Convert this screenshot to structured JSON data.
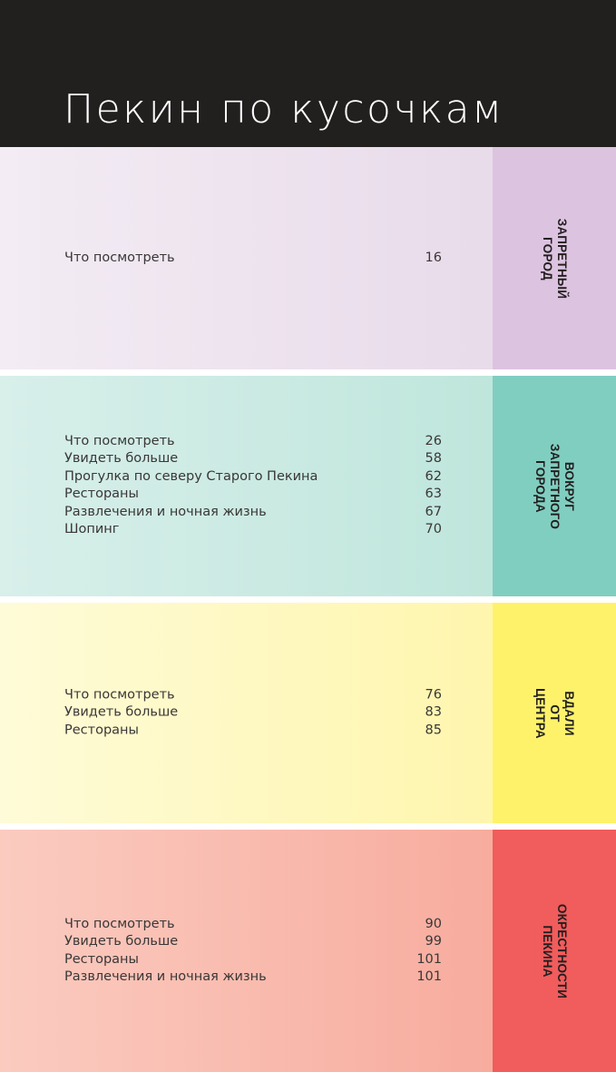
{
  "header": {
    "title": "Пекин по кусочкам"
  },
  "sections": [
    {
      "tab": "ЗАПРЕТНЫЙ ГОРОД",
      "colors": {
        "body_from": "#f3ecf4",
        "body_to": "#e8dbea",
        "tab": "#dcc3e0"
      },
      "entries": [
        {
          "label": "Что посмотреть",
          "page": "16"
        }
      ]
    },
    {
      "tab": "ВОКРУГ ЗАПРЕТНОГО ГОРОДА",
      "colors": {
        "body_from": "#d8efea",
        "body_to": "#bfe6dc",
        "tab": "#80cec0"
      },
      "entries": [
        {
          "label": "Что посмотреть",
          "page": "26"
        },
        {
          "label": "Увидеть больше",
          "page": "58"
        },
        {
          "label": "Прогулка по северу Старого Пекина",
          "page": "62"
        },
        {
          "label": "Рестораны",
          "page": "63"
        },
        {
          "label": "Развлечения и ночная жизнь",
          "page": "67"
        },
        {
          "label": "Шопинг",
          "page": "70"
        }
      ]
    },
    {
      "tab": "ВДАЛИ ОТ ЦЕНТРА",
      "colors": {
        "body_from": "#fefbd8",
        "body_to": "#fef6ad",
        "tab": "#fef26b"
      },
      "entries": [
        {
          "label": "Что посмотреть",
          "page": "76"
        },
        {
          "label": "Увидеть больше",
          "page": "83"
        },
        {
          "label": "Рестораны",
          "page": "85"
        }
      ]
    },
    {
      "tab": "ОКРЕСТНОСТИ\nПЕКИНА",
      "colors": {
        "body_from": "#fbcbc0",
        "body_to": "#f7ac9e",
        "tab": "#f15c5c"
      },
      "entries": [
        {
          "label": "Что посмотреть",
          "page": "90"
        },
        {
          "label": "Увидеть больше",
          "page": "99"
        },
        {
          "label": "Рестораны",
          "page": "101"
        },
        {
          "label": "Развлечения и ночная жизнь",
          "page": "101"
        }
      ]
    }
  ]
}
